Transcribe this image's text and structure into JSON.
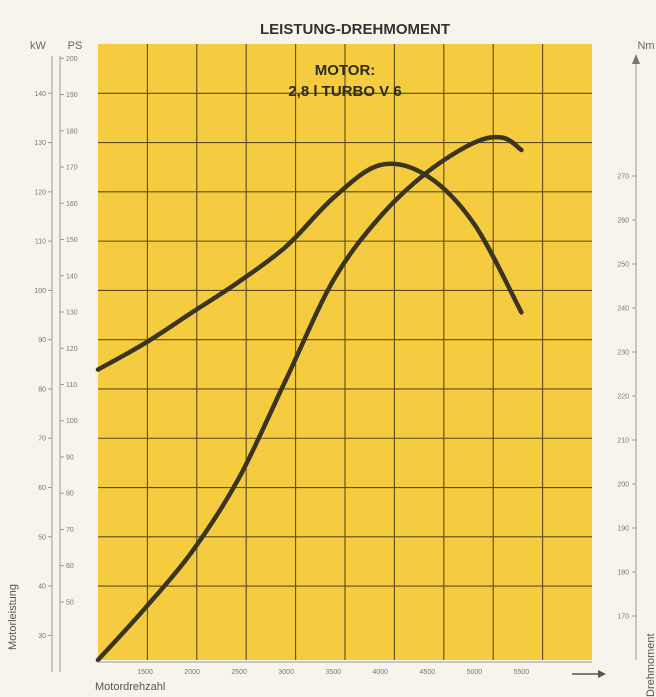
{
  "chart_data": {
    "type": "line",
    "title": "LEISTUNG-DREHMOMENT",
    "annotation_line1": "MOTOR:",
    "annotation_line2": "2,8 l TURBO V 6",
    "xlabel": "Motordrehzahl",
    "ylabel_left": "Motorleistung",
    "ylabel_right": "Drehmoment",
    "unit_kw": "kW",
    "unit_ps": "PS",
    "unit_nm": "Nm",
    "xlim": [
      1000,
      6250
    ],
    "x_ticks": [
      1500,
      2000,
      2500,
      3000,
      3500,
      4000,
      4500,
      5000,
      5500
    ],
    "kw_lim": [
      25,
      150
    ],
    "kw_ticks": [
      30,
      40,
      50,
      60,
      70,
      80,
      90,
      100,
      110,
      120,
      130,
      140
    ],
    "ps_ticks": [
      50,
      60,
      70,
      80,
      90,
      100,
      110,
      120,
      130,
      140,
      150,
      160,
      170,
      180,
      190,
      200
    ],
    "nm_lim": [
      160,
      300
    ],
    "nm_ticks": [
      170,
      180,
      190,
      200,
      210,
      220,
      230,
      240,
      250,
      260,
      270
    ],
    "series": [
      {
        "axis": "kw",
        "x": [
          1000,
          1500,
          2000,
          2500,
          3000,
          3500,
          4000,
          4500,
          5000,
          5300,
          5500
        ],
        "values": [
          25,
          35.5,
          47,
          62,
          82,
          102,
          115,
          124,
          130,
          131,
          128.5
        ]
      },
      {
        "axis": "nm",
        "x": [
          1000,
          1500,
          2000,
          2500,
          3000,
          3500,
          4000,
          4500,
          5000,
          5500
        ],
        "values": [
          226,
          232,
          239,
          246,
          254,
          265,
          272.5,
          270,
          259,
          239
        ]
      }
    ],
    "colors": {
      "plot_bg": "#f5cc40",
      "grid": "#5a4a20",
      "curve": "#3b3420",
      "page_bg": "#f7f4ec"
    }
  }
}
